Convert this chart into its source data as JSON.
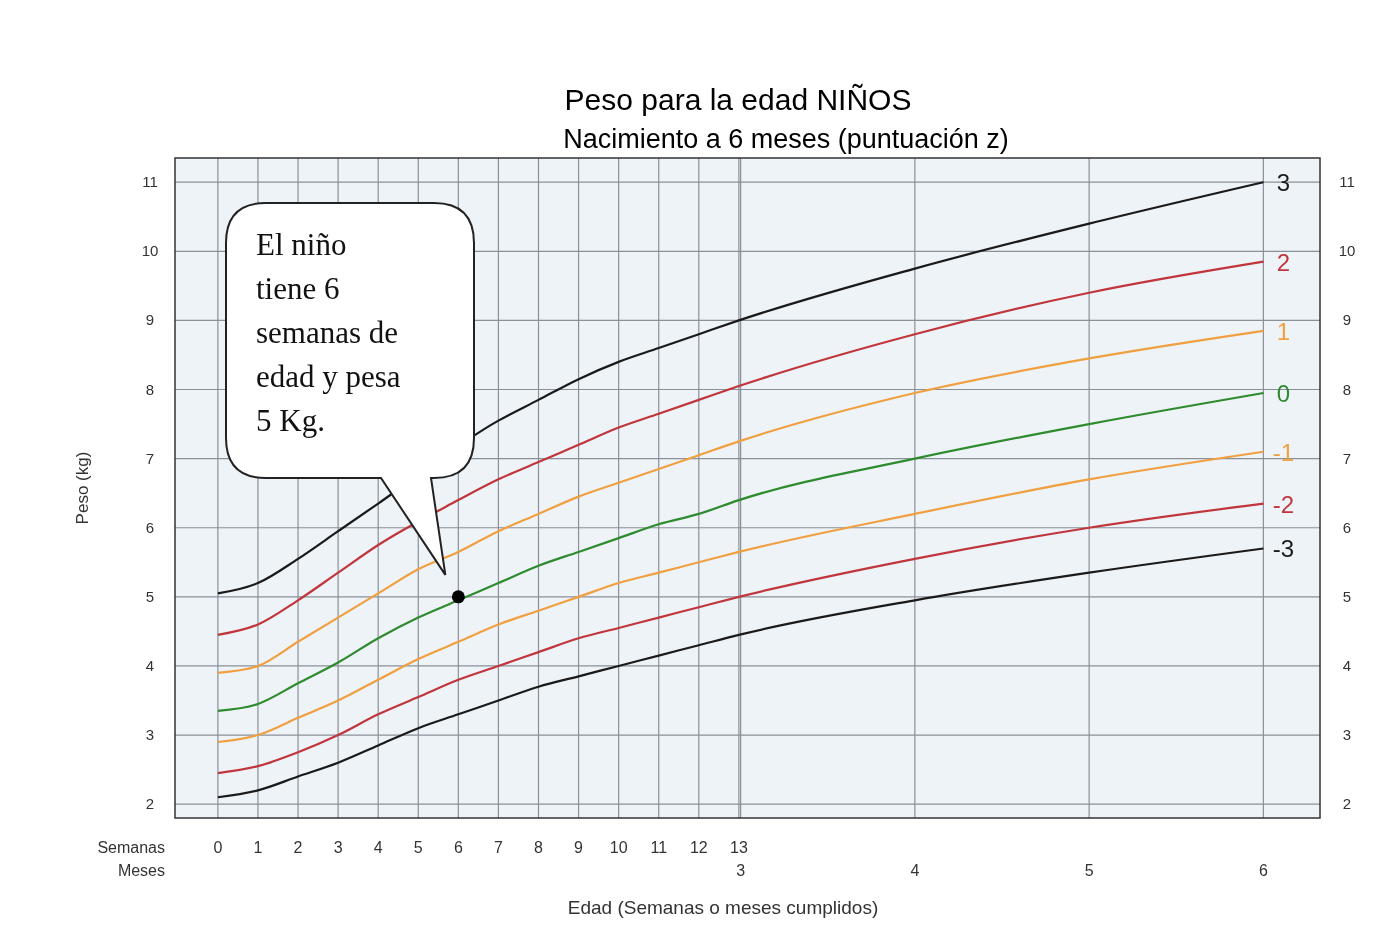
{
  "chart_data": {
    "type": "line",
    "title": "Peso para la edad NIÑOS",
    "subtitle": "Nacimiento a 6 meses (puntuación z)",
    "xlabel": "Edad (Semanas o meses cumplidos)",
    "ylabel": "Peso (kg)",
    "x": [
      0,
      1,
      2,
      3,
      4,
      5,
      6,
      7,
      8,
      9,
      10,
      11,
      12,
      13,
      17.39,
      21.74,
      26.09
    ],
    "series": [
      {
        "name": "3",
        "color": "#1a1a1a",
        "values": [
          5.05,
          5.2,
          5.55,
          5.95,
          6.35,
          null,
          null,
          7.55,
          7.85,
          8.15,
          8.4,
          8.6,
          8.8,
          9.0,
          9.75,
          10.4,
          11.0
        ]
      },
      {
        "name": "2",
        "color": "#c0363c",
        "values": [
          4.45,
          4.6,
          4.95,
          5.35,
          5.75,
          null,
          6.4,
          6.7,
          6.95,
          7.2,
          7.45,
          7.65,
          7.85,
          8.05,
          8.8,
          9.4,
          9.85
        ]
      },
      {
        "name": "1",
        "color": "#f0a040",
        "values": [
          3.9,
          4.0,
          4.35,
          4.7,
          5.05,
          5.4,
          5.65,
          5.95,
          6.2,
          6.45,
          6.65,
          6.85,
          7.05,
          7.25,
          7.95,
          8.45,
          8.85
        ]
      },
      {
        "name": "0",
        "color": "#2e8b2e",
        "values": [
          3.35,
          3.45,
          3.75,
          4.05,
          4.4,
          4.7,
          4.95,
          5.2,
          5.45,
          5.65,
          5.85,
          6.05,
          6.2,
          6.4,
          7.0,
          7.5,
          7.95
        ]
      },
      {
        "name": "-1",
        "color": "#f0a040",
        "values": [
          2.9,
          3.0,
          3.25,
          3.5,
          3.8,
          4.1,
          4.35,
          4.6,
          4.8,
          5.0,
          5.2,
          5.35,
          5.5,
          5.65,
          6.2,
          6.7,
          7.1
        ]
      },
      {
        "name": "-2",
        "color": "#c0363c",
        "values": [
          2.45,
          2.55,
          2.75,
          3.0,
          3.3,
          3.55,
          3.8,
          4.0,
          4.2,
          4.4,
          4.55,
          4.7,
          4.85,
          5.0,
          5.55,
          6.0,
          6.35
        ]
      },
      {
        "name": "-3",
        "color": "#1a1a1a",
        "values": [
          2.1,
          2.2,
          2.4,
          2.6,
          2.85,
          3.1,
          3.3,
          3.5,
          3.7,
          3.85,
          4.0,
          4.15,
          4.3,
          4.45,
          4.95,
          5.35,
          5.7
        ]
      },
      {
        "type": "scatter",
        "marker": "circle",
        "color": "#000000",
        "x": [
          6
        ],
        "values": [
          5
        ]
      }
    ],
    "xlim": [
      -1.07,
      27.5
    ],
    "xticks": [
      0,
      1,
      2,
      3,
      4,
      5,
      6,
      7,
      8,
      9,
      10,
      11,
      12,
      13
    ],
    "x2lim": [
      -0.246,
      6.325
    ],
    "x2ticks": [
      3,
      4,
      5,
      6
    ],
    "ylim": [
      1.8,
      11.35
    ],
    "yticks": [
      2,
      3,
      4,
      5,
      6,
      7,
      8,
      9,
      10,
      11
    ],
    "y2lim": [
      1.8,
      11.35
    ],
    "y2ticks": [
      2,
      3,
      4,
      5,
      6,
      7,
      8,
      9,
      10,
      11
    ],
    "grid": true,
    "legend": false,
    "marker": "none",
    "line_style": "solid",
    "annotations": [
      "Semanas",
      "Meses",
      "El niño tiene 6 semanas de edad y pesa 5 Kg."
    ]
  }
}
